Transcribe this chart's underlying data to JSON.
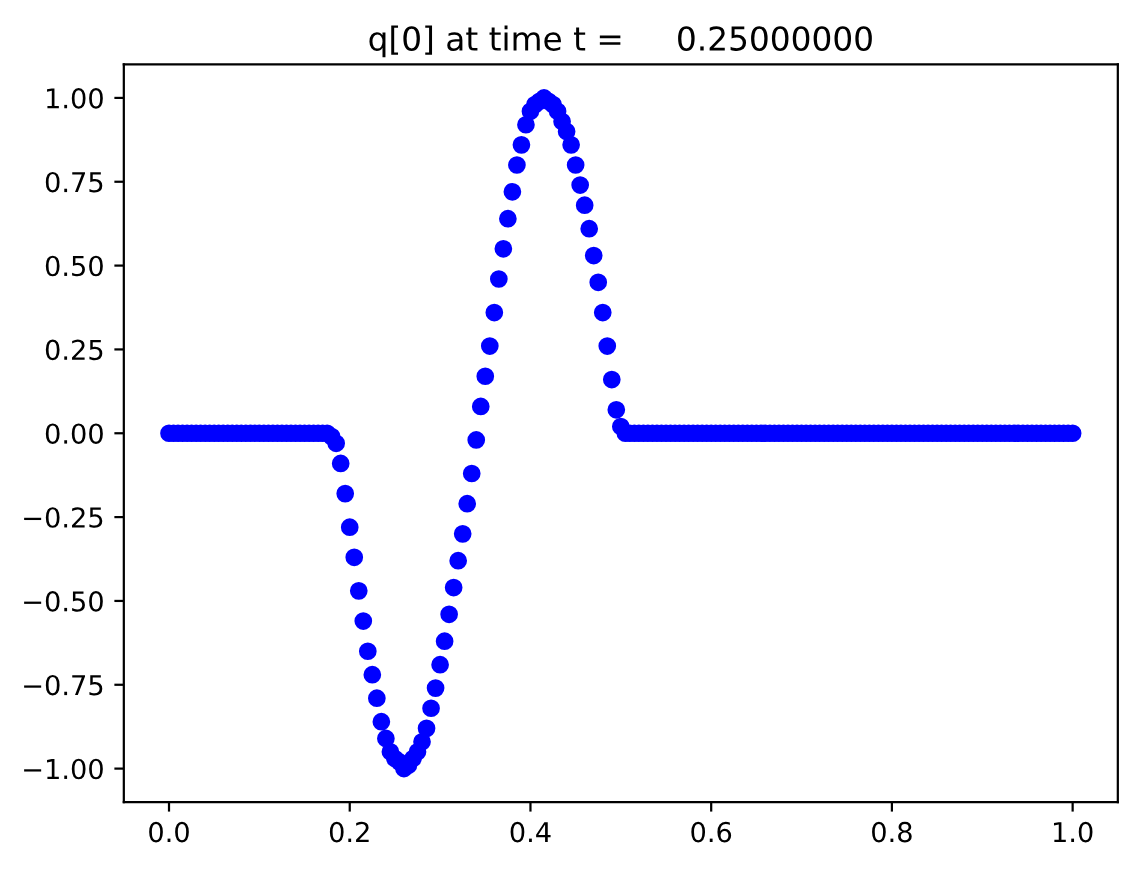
{
  "chart_data": {
    "type": "scatter",
    "title": "q[0] at time t =     0.25000000",
    "marker": "circle",
    "xlim": [
      -0.05,
      1.05
    ],
    "ylim": [
      -1.1,
      1.1
    ],
    "xticks": [
      {
        "value": 0,
        "label": "0.0"
      },
      {
        "value": 0.2,
        "label": "0.2"
      },
      {
        "value": 0.4,
        "label": "0.4"
      },
      {
        "value": 0.6,
        "label": "0.6"
      },
      {
        "value": 0.8,
        "label": "0.8"
      },
      {
        "value": 1,
        "label": "1.0"
      }
    ],
    "yticks": [
      {
        "value": -1,
        "label": "−1.00"
      },
      {
        "value": -0.75,
        "label": "−0.75"
      },
      {
        "value": -0.5,
        "label": "−0.50"
      },
      {
        "value": -0.25,
        "label": "−0.25"
      },
      {
        "value": 0,
        "label": "0.00"
      },
      {
        "value": 0.25,
        "label": "0.25"
      },
      {
        "value": 0.5,
        "label": "0.50"
      },
      {
        "value": 0.75,
        "label": "0.75"
      },
      {
        "value": 1,
        "label": "1.00"
      }
    ],
    "x": [
      0,
      0.005,
      0.01,
      0.015,
      0.02,
      0.025,
      0.03,
      0.035,
      0.04,
      0.045,
      0.05,
      0.055,
      0.06,
      0.065,
      0.07,
      0.075,
      0.08,
      0.085,
      0.09,
      0.095,
      0.1,
      0.105,
      0.11,
      0.115,
      0.12,
      0.125,
      0.13,
      0.135,
      0.14,
      0.145,
      0.15,
      0.155,
      0.16,
      0.165,
      0.17,
      0.175,
      0.18,
      0.185,
      0.19,
      0.195,
      0.2,
      0.205,
      0.21,
      0.215,
      0.22,
      0.225,
      0.23,
      0.235,
      0.24,
      0.245,
      0.25,
      0.255,
      0.26,
      0.265,
      0.27,
      0.275,
      0.28,
      0.285,
      0.29,
      0.295,
      0.3,
      0.305,
      0.31,
      0.315,
      0.32,
      0.325,
      0.33,
      0.335,
      0.34,
      0.345,
      0.35,
      0.355,
      0.36,
      0.365,
      0.37,
      0.375,
      0.38,
      0.385,
      0.39,
      0.395,
      0.4,
      0.405,
      0.41,
      0.415,
      0.42,
      0.425,
      0.43,
      0.435,
      0.44,
      0.445,
      0.45,
      0.455,
      0.46,
      0.465,
      0.47,
      0.475,
      0.48,
      0.485,
      0.49,
      0.495,
      0.5,
      0.505,
      0.51,
      0.515,
      0.52,
      0.525,
      0.53,
      0.535,
      0.54,
      0.545,
      0.55,
      0.555,
      0.56,
      0.565,
      0.57,
      0.575,
      0.58,
      0.585,
      0.59,
      0.595,
      0.6,
      0.605,
      0.61,
      0.615,
      0.62,
      0.625,
      0.63,
      0.635,
      0.64,
      0.645,
      0.65,
      0.655,
      0.66,
      0.665,
      0.67,
      0.675,
      0.68,
      0.685,
      0.69,
      0.695,
      0.7,
      0.705,
      0.71,
      0.715,
      0.72,
      0.725,
      0.73,
      0.735,
      0.74,
      0.745,
      0.75,
      0.755,
      0.76,
      0.765,
      0.77,
      0.775,
      0.78,
      0.785,
      0.79,
      0.795,
      0.8,
      0.805,
      0.81,
      0.815,
      0.82,
      0.825,
      0.83,
      0.835,
      0.84,
      0.845,
      0.85,
      0.855,
      0.86,
      0.865,
      0.87,
      0.875,
      0.88,
      0.885,
      0.89,
      0.895,
      0.9,
      0.905,
      0.91,
      0.915,
      0.92,
      0.925,
      0.93,
      0.935,
      0.94,
      0.945,
      0.95,
      0.955,
      0.96,
      0.965,
      0.97,
      0.975,
      0.98,
      0.985,
      0.99,
      0.995,
      1
    ],
    "series": [
      {
        "color": "#0000ff",
        "values": [
          0,
          0,
          0,
          0,
          0,
          0,
          0,
          0,
          0,
          0,
          0,
          0,
          0,
          0,
          0,
          0,
          0,
          0,
          0,
          0,
          0,
          0,
          0,
          0,
          0,
          0,
          0,
          0,
          0,
          0,
          0,
          0,
          0,
          0,
          0,
          0,
          -0.01,
          -0.03,
          -0.09,
          -0.18,
          -0.28,
          -0.37,
          -0.47,
          -0.56,
          -0.65,
          -0.72,
          -0.79,
          -0.86,
          -0.91,
          -0.95,
          -0.97,
          -0.98,
          -1.0,
          -0.99,
          -0.97,
          -0.95,
          -0.92,
          -0.88,
          -0.82,
          -0.76,
          -0.69,
          -0.62,
          -0.54,
          -0.46,
          -0.38,
          -0.3,
          -0.21,
          -0.12,
          -0.02,
          0.08,
          0.17,
          0.26,
          0.36,
          0.46,
          0.55,
          0.64,
          0.72,
          0.8,
          0.86,
          0.92,
          0.96,
          0.98,
          0.99,
          1.0,
          0.99,
          0.98,
          0.96,
          0.93,
          0.9,
          0.86,
          0.8,
          0.74,
          0.68,
          0.61,
          0.53,
          0.45,
          0.36,
          0.26,
          0.16,
          0.07,
          0.02,
          0,
          0,
          0,
          0,
          0,
          0,
          0,
          0,
          0,
          0,
          0,
          0,
          0,
          0,
          0,
          0,
          0,
          0,
          0,
          0,
          0,
          0,
          0,
          0,
          0,
          0,
          0,
          0,
          0,
          0,
          0,
          0,
          0,
          0,
          0,
          0,
          0,
          0,
          0,
          0,
          0,
          0,
          0,
          0,
          0,
          0,
          0,
          0,
          0,
          0,
          0,
          0,
          0,
          0,
          0,
          0,
          0,
          0,
          0,
          0,
          0,
          0,
          0,
          0,
          0,
          0,
          0,
          0,
          0,
          0,
          0,
          0,
          0,
          0,
          0,
          0,
          0,
          0,
          0,
          0,
          0,
          0,
          0,
          0,
          0,
          0,
          0,
          0,
          0,
          0,
          0,
          0,
          0,
          0,
          0,
          0,
          0,
          0,
          0,
          0
        ]
      }
    ]
  }
}
